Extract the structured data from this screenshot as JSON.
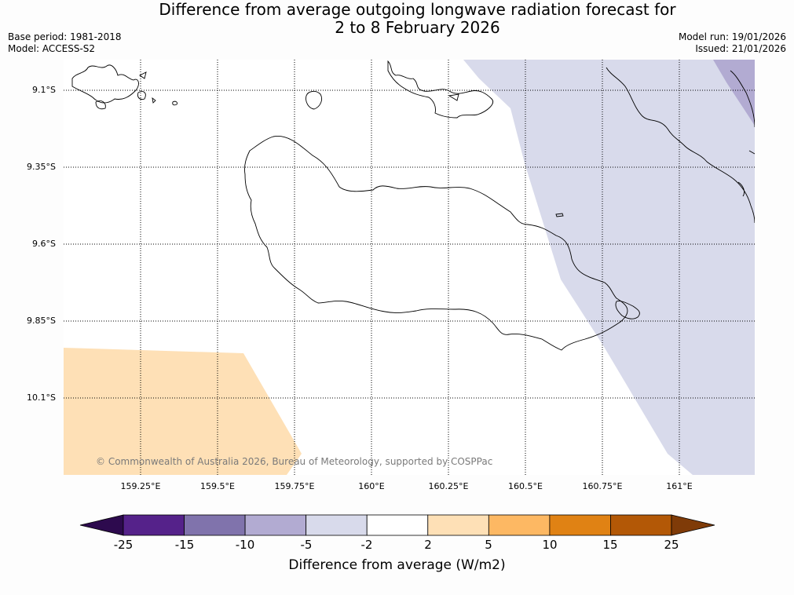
{
  "title": {
    "line1": "Difference from average outgoing longwave radiation forecast for",
    "line2": "2 to 8 February 2026"
  },
  "meta": {
    "base_period": "Base period: 1981-2018",
    "model": "Model: ACCESS-S2",
    "model_run": "Model run: 19/01/2026",
    "issued": "Issued: 21/01/2026"
  },
  "map": {
    "lat_labels": [
      "9.1°S",
      "9.35°S",
      "9.6°S",
      "9.85°S",
      "10.1°S"
    ],
    "lon_labels": [
      "159.25°E",
      "159.5°E",
      "159.75°E",
      "160°E",
      "160.25°E",
      "160.5°E",
      "160.75°E",
      "161°E"
    ],
    "credit": "© Commonwealth of Australia 2026, Bureau of Meteorology, supported by COSPPac"
  },
  "colorbar": {
    "ticks": [
      "-25",
      "-15",
      "-10",
      "-5",
      "-2",
      "2",
      "5",
      "10",
      "15",
      "25"
    ],
    "label": "Difference from average (W/m2)",
    "colors": [
      "#2d0a4e",
      "#55228a",
      "#8073ac",
      "#b2abd2",
      "#d8daeb",
      "#ffffff",
      "#fee0b6",
      "#fdb863",
      "#e08214",
      "#b35806",
      "#7f3b08"
    ]
  }
}
